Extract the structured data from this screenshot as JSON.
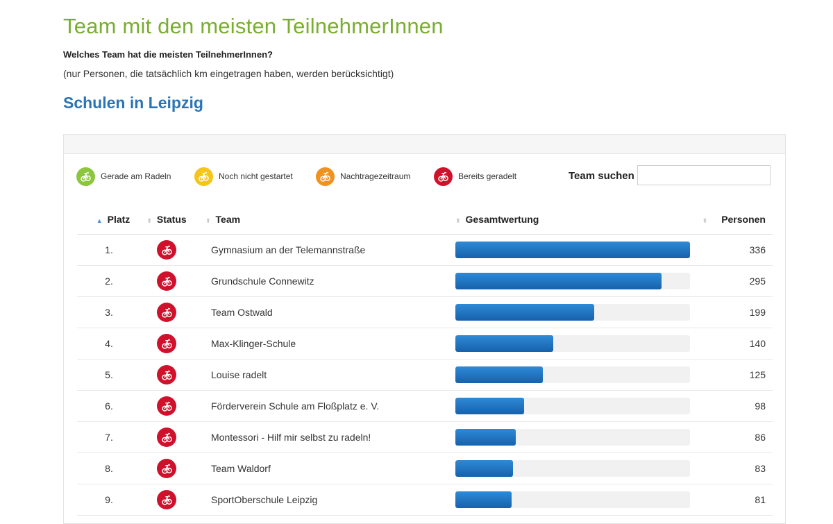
{
  "page": {
    "title": "Team mit den meisten TeilnehmerInnen",
    "subtitle": "Welches Team hat die meisten TeilnehmerInnen?",
    "note": "(nur Personen, die tatsächlich km eingetragen haben, werden berücksichtigt)",
    "section_title": "Schulen in Leipzig"
  },
  "legend": [
    {
      "label": "Gerade am Radeln",
      "color": "#8cc63f",
      "icon": "bicycle-icon"
    },
    {
      "label": "Noch nicht gestartet",
      "color": "#f5c518",
      "icon": "bicycle-icon"
    },
    {
      "label": "Nachtragezeitraum",
      "color": "#f0931e",
      "icon": "bicycle-icon"
    },
    {
      "label": "Bereits geradelt",
      "color": "#d0112b",
      "icon": "bicycle-icon"
    }
  ],
  "search": {
    "label": "Team suchen",
    "value": "",
    "placeholder": ""
  },
  "table": {
    "columns": {
      "rank": "Platz",
      "status": "Status",
      "team": "Team",
      "score": "Gesamtwertung",
      "persons": "Personen"
    },
    "sort_column": "rank",
    "max_value": 336,
    "rows": [
      {
        "rank": "1.",
        "status": "Bereits geradelt",
        "team": "Gymnasium an der Telemannstraße",
        "persons": 336
      },
      {
        "rank": "2.",
        "status": "Bereits geradelt",
        "team": "Grundschule Connewitz",
        "persons": 295
      },
      {
        "rank": "3.",
        "status": "Bereits geradelt",
        "team": "Team Ostwald",
        "persons": 199
      },
      {
        "rank": "4.",
        "status": "Bereits geradelt",
        "team": "Max-Klinger-Schule",
        "persons": 140
      },
      {
        "rank": "5.",
        "status": "Bereits geradelt",
        "team": "Louise radelt",
        "persons": 125
      },
      {
        "rank": "6.",
        "status": "Bereits geradelt",
        "team": "Förderverein Schule am Floßplatz e. V.",
        "persons": 98
      },
      {
        "rank": "7.",
        "status": "Bereits geradelt",
        "team": "Montessori - Hilf mir selbst zu radeln!",
        "persons": 86
      },
      {
        "rank": "8.",
        "status": "Bereits geradelt",
        "team": "Team Waldorf",
        "persons": 83
      },
      {
        "rank": "9.",
        "status": "Bereits geradelt",
        "team": "SportOberschule Leipzig",
        "persons": 81
      }
    ]
  },
  "colors": {
    "title": "#79ae2e",
    "section": "#2a74b5",
    "bar": "#1f73c2",
    "status_done": "#d0112b"
  }
}
